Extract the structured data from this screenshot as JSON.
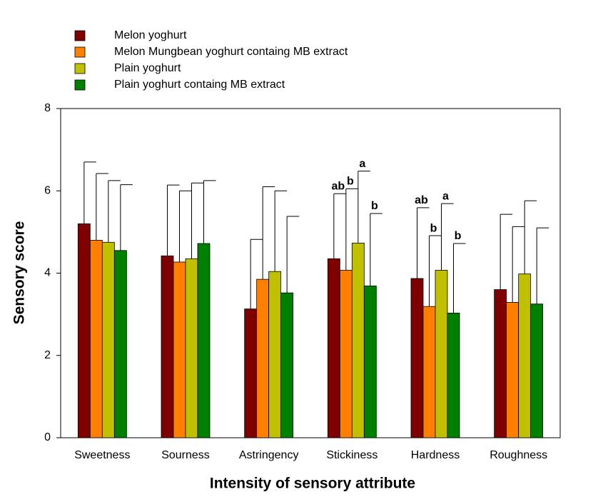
{
  "chart_data": {
    "type": "bar",
    "x_label": "Intensity of sensory attribute",
    "y_label": "Sensory score",
    "categories": [
      "Sweetness",
      "Sourness",
      "Astringency",
      "Stickiness",
      "Hardness",
      "Roughness"
    ],
    "series": [
      {
        "name": "Melon yoghurt",
        "color": "#7f0000",
        "values": [
          5.2,
          4.42,
          3.13,
          4.35,
          3.87,
          3.6
        ],
        "errors": [
          1.5,
          1.72,
          1.69,
          1.58,
          1.72,
          1.83
        ],
        "letters": [
          null,
          null,
          null,
          "ab",
          "ab",
          null
        ]
      },
      {
        "name": "Melon Mungbean yoghurt containg MB extract",
        "color": "#ff8000",
        "values": [
          4.8,
          4.27,
          3.85,
          4.07,
          3.19,
          3.29
        ],
        "errors": [
          1.62,
          1.73,
          2.25,
          1.98,
          1.72,
          1.84
        ],
        "letters": [
          null,
          null,
          null,
          "b",
          "b",
          null
        ]
      },
      {
        "name": "Plain yoghurt",
        "color": "#c0c000",
        "values": [
          4.75,
          4.35,
          4.04,
          4.73,
          4.07,
          3.98
        ],
        "errors": [
          1.5,
          1.84,
          1.96,
          1.75,
          1.62,
          1.78
        ],
        "letters": [
          null,
          null,
          null,
          "a",
          "a",
          null
        ]
      },
      {
        "name": "Plain yoghurt containg MB extract",
        "color": "#008000",
        "values": [
          4.55,
          4.72,
          3.52,
          3.69,
          3.03,
          3.25
        ],
        "errors": [
          1.6,
          1.53,
          1.86,
          1.76,
          1.69,
          1.85
        ],
        "letters": [
          null,
          null,
          null,
          "b",
          "b",
          null
        ]
      }
    ],
    "ylim": [
      0,
      8
    ],
    "yticks": [
      0,
      2,
      4,
      6,
      8
    ],
    "grid": false
  }
}
